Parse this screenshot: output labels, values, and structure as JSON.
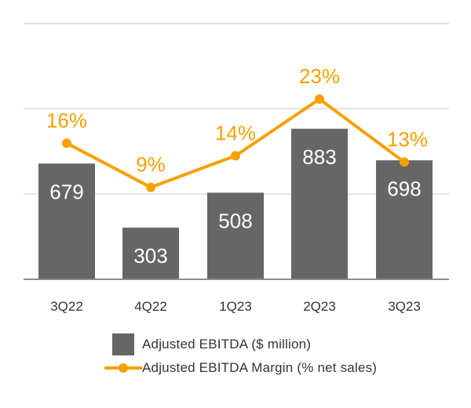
{
  "chart_data": {
    "type": "bar",
    "categories": [
      "3Q22",
      "4Q22",
      "1Q23",
      "2Q23",
      "3Q23"
    ],
    "series": [
      {
        "name": "Adjusted EBITDA ($ million)",
        "type": "bar",
        "values": [
          679,
          303,
          508,
          883,
          698
        ],
        "labels": [
          "679",
          "303",
          "508",
          "883",
          "698"
        ],
        "color": "#666666"
      },
      {
        "name": "Adjusted EBITDA Margin (% net sales)",
        "type": "line",
        "values": [
          16,
          9,
          14,
          23,
          13
        ],
        "labels": [
          "16%",
          "9%",
          "14%",
          "23%",
          "13%"
        ],
        "color": "#F5A000"
      }
    ],
    "ylim": [
      0,
      1500
    ],
    "ylim_margin": [
      0,
      30
    ],
    "gridlines": [
      500,
      1000,
      1500
    ],
    "legend_position": "bottom"
  },
  "legend": [
    {
      "label": "Adjusted EBITDA ($ million)"
    },
    {
      "label": "Adjusted EBITDA Margin (% net sales)"
    }
  ]
}
